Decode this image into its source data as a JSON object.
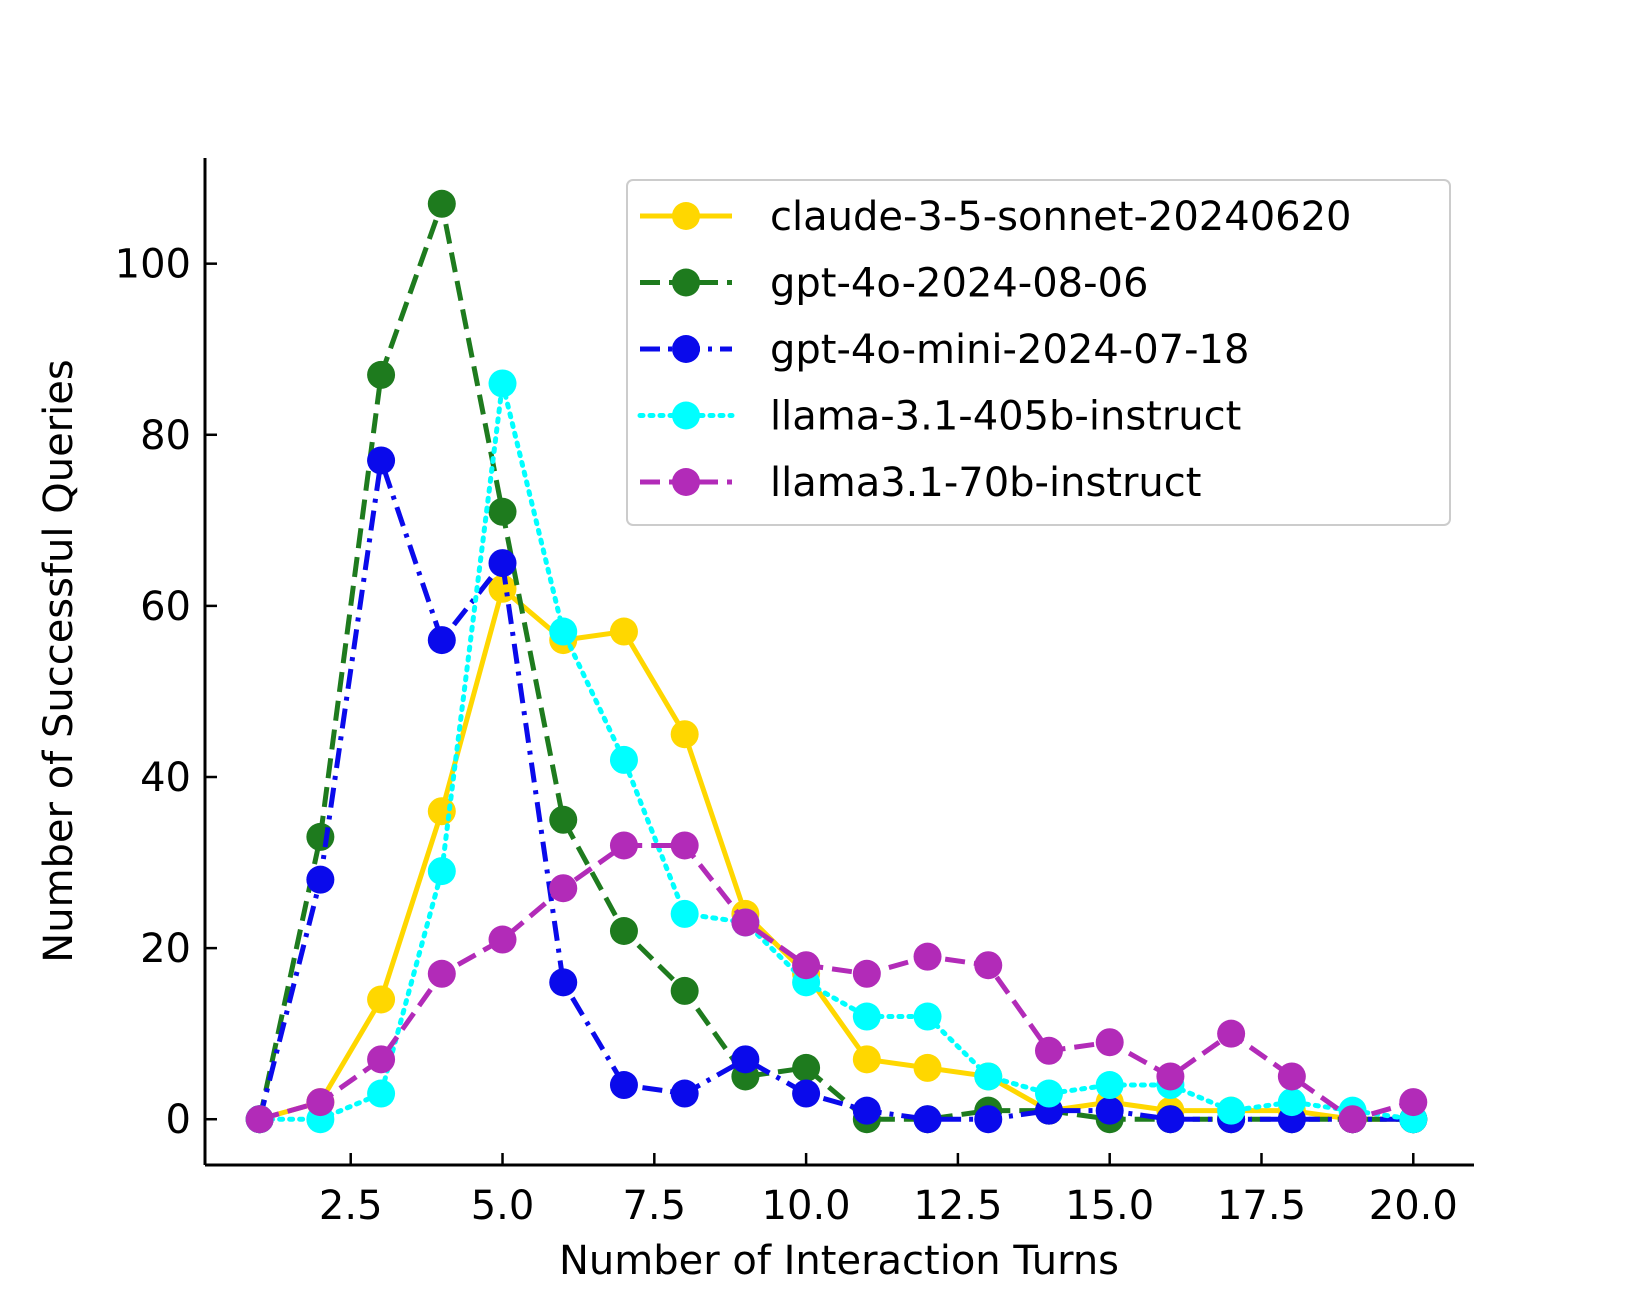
{
  "chart_data": {
    "type": "line",
    "title": "",
    "xlabel": "Number of Interaction Turns",
    "ylabel": "Number of Successful Queries",
    "xlim": [
      0.1,
      21.0
    ],
    "ylim": [
      -5.35,
      112.35
    ],
    "x_ticks": [
      "2.5",
      "5.0",
      "7.5",
      "10.0",
      "12.5",
      "15.0",
      "17.5",
      "20.0"
    ],
    "y_ticks": [
      "0",
      "20",
      "40",
      "60",
      "80",
      "100"
    ],
    "grid": false,
    "legend_position": "top-right",
    "x": [
      1,
      2,
      3,
      4,
      5,
      6,
      7,
      8,
      9,
      10,
      11,
      12,
      13,
      14,
      15,
      16,
      17,
      18,
      19,
      20
    ],
    "series": [
      {
        "name": "claude-3-5-sonnet-20240620",
        "color": "#FFD700",
        "line_style": "solid",
        "values": [
          0,
          2,
          14,
          36,
          62,
          56,
          57,
          45,
          24,
          17,
          7,
          6,
          5,
          1,
          2,
          1,
          1,
          1,
          0,
          0
        ]
      },
      {
        "name": "gpt-4o-2024-08-06",
        "color": "#1E7B1E",
        "line_style": "dashed",
        "values": [
          0,
          33,
          87,
          107,
          71,
          35,
          22,
          15,
          5,
          6,
          0,
          0,
          1,
          1,
          0,
          0,
          0,
          0,
          0,
          0
        ]
      },
      {
        "name": "gpt-4o-mini-2024-07-18",
        "color": "#0A0AEB",
        "line_style": "dashdot",
        "values": [
          0,
          28,
          77,
          56,
          65,
          16,
          4,
          3,
          7,
          3,
          1,
          0,
          0,
          1,
          1,
          0,
          0,
          0,
          0,
          0
        ]
      },
      {
        "name": "llama-3.1-405b-instruct",
        "color": "#00FFFF",
        "line_style": "dotted",
        "values": [
          0,
          0,
          3,
          29,
          86,
          57,
          42,
          24,
          23,
          16,
          12,
          12,
          5,
          3,
          4,
          4,
          1,
          2,
          1,
          0
        ]
      },
      {
        "name": "llama3.1-70b-instruct",
        "color": "#B22BB8",
        "line_style": "dashed",
        "values": [
          0,
          2,
          7,
          17,
          21,
          27,
          32,
          32,
          23,
          18,
          17,
          19,
          18,
          8,
          9,
          5,
          10,
          5,
          0,
          2
        ]
      }
    ]
  }
}
